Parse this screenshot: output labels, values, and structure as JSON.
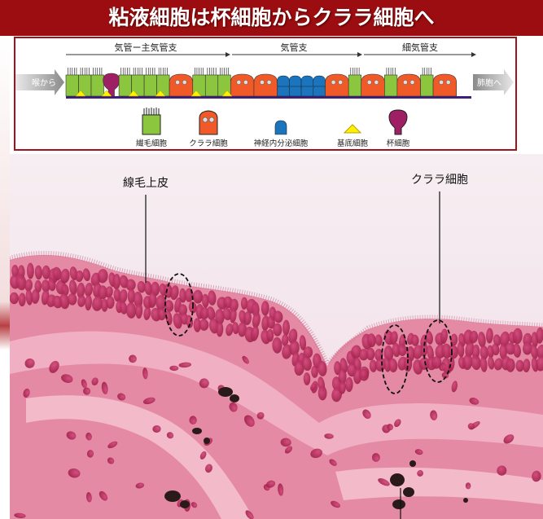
{
  "title": "粘液細胞は杯細胞からクララ細胞へ",
  "diagram": {
    "regions": [
      "気管ー主気管支",
      "気管支",
      "細気管支"
    ],
    "left_label": "喉から",
    "right_label": "肺胞へ",
    "legend": [
      {
        "label": "繊毛細胞",
        "icon": "ciliated-cell-icon"
      },
      {
        "label": "クララ細胞",
        "icon": "clara-cell-icon"
      },
      {
        "label": "神経内分泌細胞",
        "icon": "neuroendocrine-cell-icon"
      },
      {
        "label": "基底細胞",
        "icon": "basal-cell-icon"
      },
      {
        "label": "杯細胞",
        "icon": "goblet-cell-icon"
      }
    ]
  },
  "micrograph": {
    "labels": {
      "left": "線毛上皮",
      "right": "クララ細胞"
    }
  },
  "colors": {
    "title_bar": "#9b0d10",
    "frame": "#a2141b",
    "ciliated": "#8cc63f",
    "clara": "#f05a28",
    "neuroendocrine": "#1c75bc",
    "basal": "#fff200",
    "goblet": "#9e1f63",
    "membrane": "#3d1f7a",
    "tissue": "#e58aa5",
    "nucleus": "#b0254f"
  }
}
